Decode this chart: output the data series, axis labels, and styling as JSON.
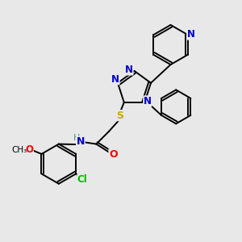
{
  "bg_color": "#e8e8e8",
  "atom_colors": {
    "N": "#0000cc",
    "O": "#ff0000",
    "S": "#ccaa00",
    "Cl": "#00bb00",
    "C": "#000000",
    "H": "#4a9090"
  }
}
